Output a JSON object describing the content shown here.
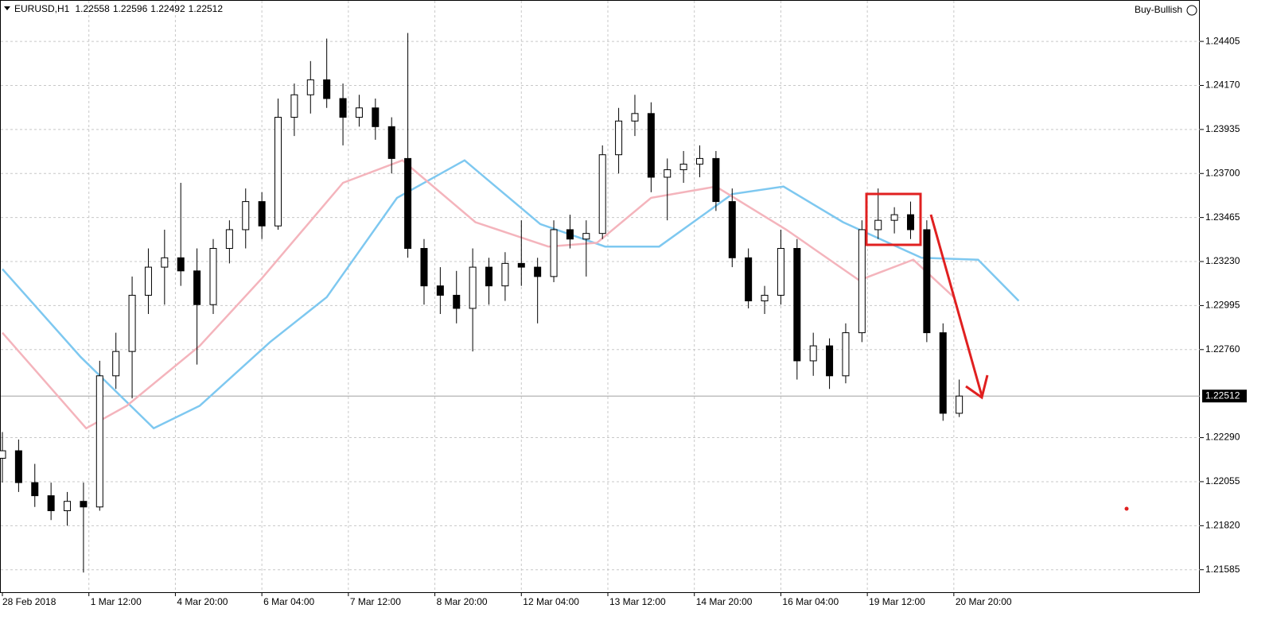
{
  "chart_data": {
    "type": "candlestick",
    "symbol": "EURUSD,H1",
    "header_values": [
      1.22558,
      1.22596,
      1.22492,
      1.22512
    ],
    "expert": "Buy-Bullish",
    "last_price": 1.22512,
    "xlim": [
      0,
      443
    ],
    "ylim": [
      1.21465,
      1.24626
    ],
    "grid": true,
    "xticks": [
      {
        "value": 0,
        "label": "28 Feb 2018"
      },
      {
        "value": 32,
        "label": "1 Mar 12:00"
      },
      {
        "value": 64,
        "label": "4 Mar 20:00"
      },
      {
        "value": 96,
        "label": "6 Mar 04:00"
      },
      {
        "value": 128,
        "label": "7 Mar 12:00"
      },
      {
        "value": 160,
        "label": "8 Mar 20:00"
      },
      {
        "value": 192,
        "label": "12 Mar 04:00"
      },
      {
        "value": 224,
        "label": "13 Mar 12:00"
      },
      {
        "value": 256,
        "label": "14 Mar 20:00"
      },
      {
        "value": 288,
        "label": "16 Mar 04:00"
      },
      {
        "value": 320,
        "label": "19 Mar 12:00"
      },
      {
        "value": 352,
        "label": "20 Mar 20:00"
      }
    ],
    "yticks": [
      1.24405,
      {
        "value": 1.2417,
        "label": "1.24170"
      },
      1.23935,
      {
        "value": 1.237,
        "label": "1.23700"
      },
      1.23465,
      {
        "value": 1.2323,
        "label": "1.23230"
      },
      1.22995,
      {
        "value": 1.2276,
        "label": "1.22760"
      },
      {
        "value": 1.2229,
        "label": "1.22290"
      },
      1.22055,
      {
        "value": 1.2182,
        "label": "1.21820"
      },
      1.21585
    ],
    "x": [
      0,
      6,
      12,
      18,
      24,
      30,
      36,
      42,
      48,
      54,
      60,
      66,
      72,
      78,
      84,
      90,
      96,
      102,
      108,
      114,
      120,
      126,
      132,
      138,
      144,
      150,
      156,
      162,
      168,
      174,
      180,
      186,
      192,
      198,
      204,
      210,
      216,
      222,
      228,
      234,
      240,
      246,
      252,
      258,
      264,
      270,
      276,
      282,
      288,
      294,
      300,
      306,
      312,
      318,
      324,
      330,
      336,
      342,
      348,
      354
    ],
    "open": [
      1.2218,
      1.2222,
      1.2205,
      1.2198,
      1.219,
      1.2195,
      1.2192,
      1.2262,
      1.2275,
      1.2305,
      1.232,
      1.2325,
      1.2318,
      1.23,
      1.233,
      1.234,
      1.2355,
      1.2342,
      1.24,
      1.2412,
      1.242,
      1.241,
      1.24,
      1.2405,
      1.2395,
      1.2378,
      1.233,
      1.231,
      1.2305,
      1.2298,
      1.232,
      1.231,
      1.2322,
      1.232,
      1.2315,
      1.234,
      1.2335,
      1.2338,
      1.238,
      1.2398,
      1.2402,
      1.2368,
      1.2372,
      1.2375,
      1.2378,
      1.2355,
      1.2325,
      1.2302,
      1.2305,
      1.233,
      1.227,
      1.2278,
      1.2262,
      1.2285,
      1.234,
      1.2345,
      1.2348,
      1.234,
      1.2285,
      1.2242
    ],
    "high": [
      1.2232,
      1.2228,
      1.2215,
      1.2205,
      1.22,
      1.2205,
      1.227,
      1.2285,
      1.2315,
      1.233,
      1.234,
      1.2365,
      1.233,
      1.2335,
      1.2345,
      1.2362,
      1.236,
      1.241,
      1.2418,
      1.243,
      1.2442,
      1.2418,
      1.2412,
      1.241,
      1.24,
      1.2445,
      1.2335,
      1.232,
      1.2318,
      1.233,
      1.2325,
      1.2328,
      1.2345,
      1.2325,
      1.2345,
      1.2348,
      1.2345,
      1.2385,
      1.2405,
      1.2412,
      1.2408,
      1.2378,
      1.2382,
      1.2385,
      1.2382,
      1.2362,
      1.233,
      1.231,
      1.234,
      1.2335,
      1.2285,
      1.2282,
      1.229,
      1.2345,
      1.2362,
      1.2352,
      1.2355,
      1.2345,
      1.229,
      1.226
    ],
    "low": [
      1.2205,
      1.22,
      1.2192,
      1.2185,
      1.2182,
      1.2157,
      1.219,
      1.2255,
      1.225,
      1.2295,
      1.23,
      1.231,
      1.2268,
      1.2295,
      1.2322,
      1.233,
      1.2335,
      1.234,
      1.239,
      1.2402,
      1.2405,
      1.2385,
      1.2395,
      1.2388,
      1.237,
      1.2325,
      1.23,
      1.2295,
      1.229,
      1.2275,
      1.23,
      1.2302,
      1.231,
      1.229,
      1.2312,
      1.233,
      1.2315,
      1.2335,
      1.237,
      1.239,
      1.236,
      1.2345,
      1.2365,
      1.2368,
      1.235,
      1.232,
      1.2298,
      1.2295,
      1.23,
      1.226,
      1.2262,
      1.2255,
      1.2258,
      1.228,
      1.2335,
      1.2338,
      1.2335,
      1.228,
      1.2238,
      1.224
    ],
    "close": [
      1.2222,
      1.2205,
      1.2198,
      1.219,
      1.2195,
      1.2192,
      1.2262,
      1.2275,
      1.2305,
      1.232,
      1.2325,
      1.2318,
      1.23,
      1.233,
      1.234,
      1.2355,
      1.2342,
      1.24,
      1.2412,
      1.242,
      1.241,
      1.24,
      1.2405,
      1.2395,
      1.2378,
      1.233,
      1.231,
      1.2305,
      1.2298,
      1.232,
      1.231,
      1.2322,
      1.232,
      1.2315,
      1.234,
      1.2335,
      1.2338,
      1.238,
      1.2398,
      1.2402,
      1.2368,
      1.2372,
      1.2375,
      1.2378,
      1.2355,
      1.2325,
      1.2302,
      1.2305,
      1.233,
      1.227,
      1.2278,
      1.2262,
      1.2285,
      1.234,
      1.2345,
      1.2348,
      1.234,
      1.2285,
      1.2242,
      1.22512
    ],
    "lines": [
      {
        "color": "#7ec8f0",
        "x": [
          0,
          29,
          56,
          73,
          99,
          120,
          146,
          171,
          199,
          223,
          243,
          270,
          289,
          311,
          340,
          361,
          376
        ],
        "values": [
          1.2319,
          1.2272,
          1.2234,
          1.2246,
          1.228,
          1.2304,
          1.2357,
          1.2377,
          1.2343,
          1.2331,
          1.2331,
          1.2359,
          1.2363,
          1.2344,
          1.2325,
          1.2324,
          1.2302
        ]
      },
      {
        "color": "#f4b4bc",
        "x": [
          0,
          31,
          46,
          73,
          96,
          126,
          148,
          175,
          202,
          220,
          240,
          264,
          290,
          317,
          337,
          352
        ],
        "values": [
          1.2285,
          1.2234,
          1.2246,
          1.2278,
          1.2314,
          1.2365,
          1.2377,
          1.2344,
          1.2331,
          1.2333,
          1.2357,
          1.2363,
          1.234,
          1.2313,
          1.2324,
          1.2304
        ]
      }
    ]
  }
}
